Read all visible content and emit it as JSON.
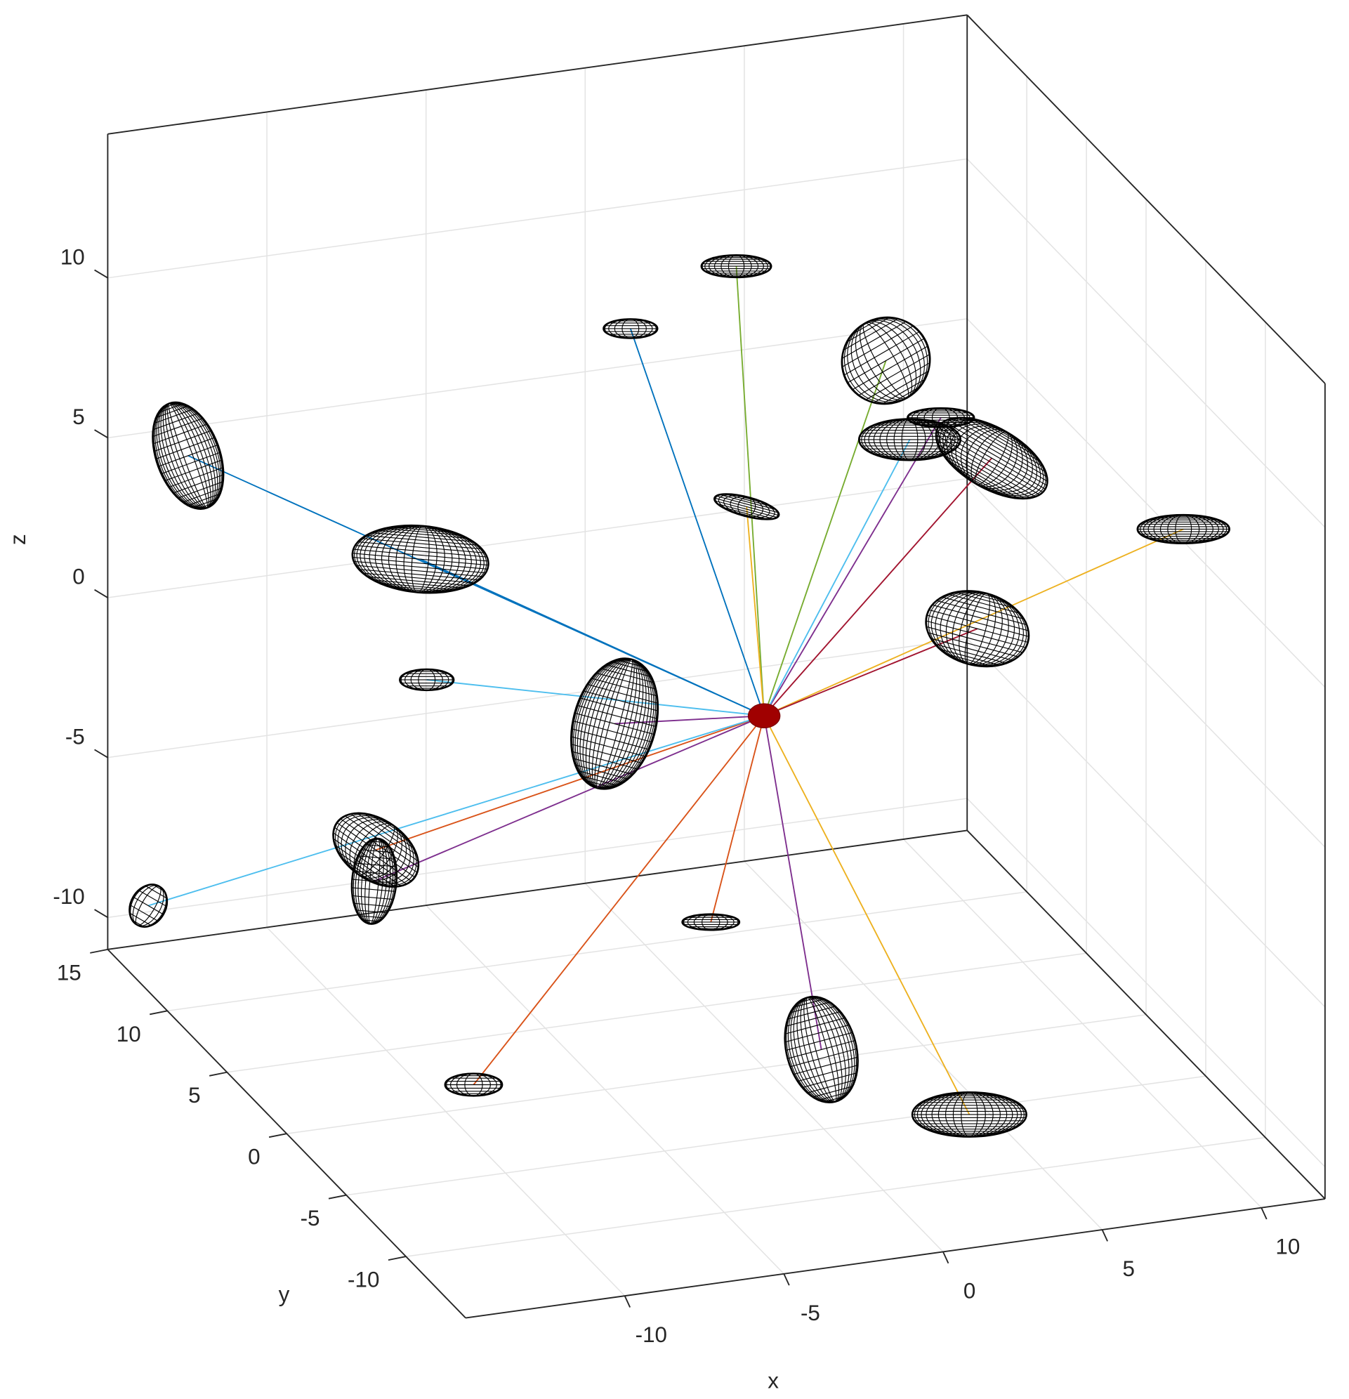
{
  "chart_data": {
    "type": "scatter3d",
    "xlabel": "x",
    "ylabel": "y",
    "zlabel": "z",
    "xlim": [
      -15,
      12
    ],
    "ylim": [
      -15,
      15
    ],
    "zlim": [
      -11,
      14.5
    ],
    "xticks": [
      -10,
      -5,
      0,
      5,
      10
    ],
    "yticks": [
      -10,
      -5,
      0,
      5,
      10,
      15
    ],
    "zticks": [
      -10,
      -5,
      0,
      5,
      10
    ],
    "grid": true,
    "ellipsoid_color": "#000000",
    "center": {
      "x": 0,
      "y": 0,
      "z": 0,
      "radii": [
        0.5,
        0.38
      ],
      "color": "#a00000"
    },
    "ellipsoids": [
      {
        "x": 1.0,
        "y": 5,
        "z": 12.0,
        "radii": [
          1.1,
          0.35
        ],
        "angle": 0,
        "line_color": "#77ac30"
      },
      {
        "x": -1.2,
        "y": 8,
        "z": 9.2,
        "radii": [
          0.85,
          0.3
        ],
        "angle": 0,
        "line_color": "#0072bd"
      },
      {
        "x": 5.7,
        "y": 5,
        "z": 8.4,
        "radii": [
          1.4,
          1.35
        ],
        "angle": -30,
        "line_color": "#77ac30"
      },
      {
        "x": 9.3,
        "y": 10,
        "z": 4.2,
        "radii": [
          1.05,
          0.3
        ],
        "angle": 0,
        "line_color": "#7e2f8e"
      },
      {
        "x": 5.7,
        "y": 3,
        "z": 6.7,
        "radii": [
          1.6,
          0.65
        ],
        "angle": 0,
        "line_color": "#4dbeee"
      },
      {
        "x": 7.9,
        "y": 2,
        "z": 6.2,
        "radii": [
          1.95,
          0.95
        ],
        "angle": 30,
        "line_color": "#a2142f"
      },
      {
        "x": -13.6,
        "y": 12,
        "z": 5.4,
        "radii": [
          1.0,
          1.75
        ],
        "angle": -20,
        "line_color": "#0072bd"
      },
      {
        "x": -7.8,
        "y": 8,
        "z": 2.9,
        "radii": [
          2.15,
          1.05
        ],
        "angle": 5,
        "line_color": "#0072bd"
      },
      {
        "x": 1.7,
        "y": 6,
        "z": 4.0,
        "radii": [
          1.05,
          0.3
        ],
        "angle": 15,
        "line_color": "#edb120"
      },
      {
        "x": 11.3,
        "y": -5,
        "z": 6.2,
        "radii": [
          1.45,
          0.45
        ],
        "angle": 0,
        "line_color": "#edb120"
      },
      {
        "x": 6.7,
        "y": 0,
        "z": 1.8,
        "radii": [
          1.65,
          1.15
        ],
        "angle": 15,
        "line_color": "#a2142f"
      },
      {
        "x": -7.6,
        "y": 8,
        "z": -0.9,
        "radii": [
          0.85,
          0.33
        ],
        "angle": 0,
        "line_color": "#4dbeee"
      },
      {
        "x": -4.7,
        "y": 0,
        "z": 0.4,
        "radii": [
          1.3,
          2.1
        ],
        "angle": 15,
        "line_color": "#7e2f8e"
      },
      {
        "x": -9.2,
        "y": 8,
        "z": -6.0,
        "radii": [
          1.5,
          0.95
        ],
        "angle": 35,
        "line_color": "#d95319"
      },
      {
        "x": -10.0,
        "y": 6,
        "z": -6.1,
        "radii": [
          0.7,
          1.35
        ],
        "angle": 5,
        "line_color": "#7e2f8e"
      },
      {
        "x": -14.85,
        "y": 12,
        "z": -8.5,
        "radii": [
          0.55,
          0.7
        ],
        "angle": 30,
        "line_color": "#4dbeee"
      },
      {
        "x": 0.2,
        "y": 5,
        "z": -8.4,
        "radii": [
          0.9,
          0.25
        ],
        "angle": 0,
        "line_color": "#d95319"
      },
      {
        "x": -11.0,
        "y": -5,
        "z": -8.1,
        "radii": [
          0.9,
          0.35
        ],
        "angle": 0,
        "line_color": "#d95319"
      },
      {
        "x": -1.2,
        "y": -8,
        "z": -7.2,
        "radii": [
          1.1,
          1.7
        ],
        "angle": -15,
        "line_color": "#7e2f8e"
      },
      {
        "x": 2.7,
        "y": -10,
        "z": -9.0,
        "radii": [
          1.8,
          0.7
        ],
        "angle": 0,
        "line_color": "#edb120"
      }
    ]
  }
}
